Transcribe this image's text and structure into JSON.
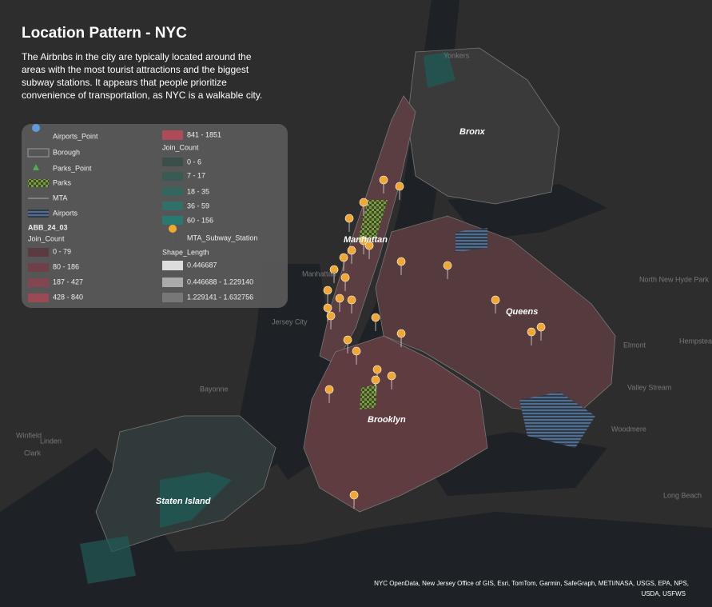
{
  "header": {
    "title": "Location Pattern - NYC",
    "description": [
      "The Airbnbs in the city are typically located around the",
      "areas with the most tourist attractions and the biggest",
      "subway stations. It appears that people prioritize",
      "convenience of transportation, as NYC is a walkable city."
    ]
  },
  "legend": {
    "left": [
      "Airports_Point",
      "Borough",
      "Parks_Point",
      "Parks",
      "MTA",
      "Airports"
    ],
    "layer": "ABB_24_03",
    "join_count_left": "Join_Count",
    "abb_ranges": [
      "0 - 79",
      "80 - 186",
      "187 - 427",
      "428 - 840",
      "841 - 1851"
    ],
    "join_count_right": "Join_Count",
    "park_ranges": [
      "0 - 6",
      "7 - 17",
      "18 - 35",
      "36 - 59",
      "60 - 156"
    ],
    "stations": "MTA_Subway_Station",
    "shape_length": "Shape_Length",
    "shape_ranges": [
      "0.446687",
      "0.446688 - 1.229140",
      "1.229141 - 1.632756"
    ]
  },
  "map_labels": {
    "boroughs": [
      "Bronx",
      "Manhattan",
      "Queens",
      "Brooklyn",
      "Staten Island"
    ],
    "places": [
      "Yonkers",
      "Manhattan",
      "Jersey City",
      "Bayonne",
      "Linden",
      "Clark",
      "Winfield",
      "Elmont",
      "Hempstead",
      "Valley Stream",
      "Woodmere",
      "Long Beach",
      "North New Hyde Park"
    ]
  },
  "attribution": [
    "NYC OpenData, New Jersey Office of GIS, Esri, TomTom, Garmin, SafeGraph, METI/NASA, USGS, EPA, NPS,",
    "USDA, USFWS"
  ]
}
